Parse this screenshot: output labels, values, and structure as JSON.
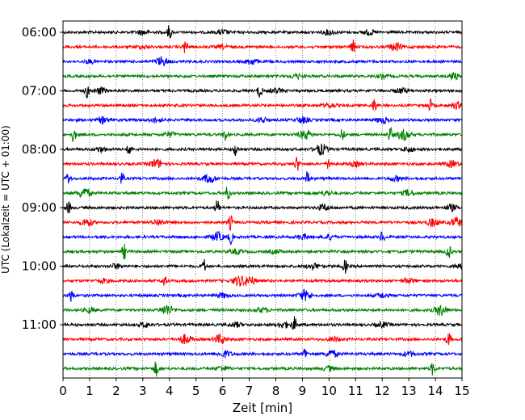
{
  "chart_data": {
    "type": "line",
    "title": "",
    "xlabel": "Zeit  [min]",
    "ylabel": "UTC (Lokalzeit = UTC + 01:00)",
    "xlim": [
      0,
      15
    ],
    "x_ticks": [
      "0",
      "1",
      "2",
      "3",
      "4",
      "5",
      "6",
      "7",
      "8",
      "9",
      "10",
      "11",
      "12",
      "13",
      "14",
      "15"
    ],
    "y_ticks": [
      "06:00",
      "07:00",
      "08:00",
      "09:00",
      "10:00",
      "11:00"
    ],
    "grid": "vertical dotted",
    "colors": [
      "#000000",
      "#ff0000",
      "#0000ff",
      "#008000"
    ],
    "traces": [
      {
        "start": "06:00",
        "color": "#000000",
        "events": [
          [
            4.0,
            1.0
          ],
          [
            3.0,
            0.3
          ],
          [
            6.0,
            0.3
          ],
          [
            10.0,
            0.3
          ],
          [
            11.5,
            0.3
          ]
        ]
      },
      {
        "start": "06:15",
        "color": "#ff0000",
        "events": [
          [
            4.6,
            1.0
          ],
          [
            10.9,
            1.0
          ],
          [
            12.5,
            0.5
          ],
          [
            6.0,
            0.2
          ],
          [
            3.0,
            0.2
          ]
        ]
      },
      {
        "start": "06:30",
        "color": "#0000ff",
        "events": [
          [
            3.7,
            0.6
          ],
          [
            7.1,
            0.4
          ],
          [
            1.0,
            0.2
          ]
        ]
      },
      {
        "start": "06:45",
        "color": "#008000",
        "events": [
          [
            8.8,
            0.3
          ],
          [
            12.0,
            0.2
          ],
          [
            14.7,
            0.4
          ]
        ]
      },
      {
        "start": "07:00",
        "color": "#000000",
        "events": [
          [
            0.9,
            0.9
          ],
          [
            1.4,
            0.4
          ],
          [
            7.4,
            1.0
          ],
          [
            8.0,
            0.3
          ],
          [
            12.7,
            0.3
          ]
        ]
      },
      {
        "start": "07:15",
        "color": "#ff0000",
        "events": [
          [
            11.7,
            0.9
          ],
          [
            13.8,
            0.8
          ],
          [
            10.0,
            0.3
          ],
          [
            14.8,
            0.4
          ]
        ]
      },
      {
        "start": "07:30",
        "color": "#0000ff",
        "events": [
          [
            1.5,
            0.4
          ],
          [
            3.5,
            0.3
          ],
          [
            7.5,
            0.3
          ],
          [
            9.0,
            0.4
          ],
          [
            12.0,
            0.4
          ]
        ]
      },
      {
        "start": "07:45",
        "color": "#008000",
        "events": [
          [
            0.4,
            1.0
          ],
          [
            6.1,
            0.8
          ],
          [
            9.1,
            0.6
          ],
          [
            10.5,
            0.8
          ],
          [
            12.3,
            1.0
          ],
          [
            12.8,
            0.7
          ],
          [
            4.0,
            0.3
          ]
        ]
      },
      {
        "start": "08:00",
        "color": "#000000",
        "events": [
          [
            2.5,
            0.9
          ],
          [
            6.5,
            0.9
          ],
          [
            9.7,
            0.7
          ],
          [
            13.0,
            0.3
          ],
          [
            1.4,
            0.3
          ]
        ]
      },
      {
        "start": "08:15",
        "color": "#ff0000",
        "events": [
          [
            3.5,
            0.6
          ],
          [
            8.8,
            1.0
          ],
          [
            10.0,
            0.8
          ],
          [
            11.0,
            0.3
          ],
          [
            14.6,
            0.4
          ]
        ]
      },
      {
        "start": "08:30",
        "color": "#0000ff",
        "events": [
          [
            0.2,
            0.8
          ],
          [
            2.2,
            0.8
          ],
          [
            5.5,
            0.6
          ],
          [
            9.2,
            1.0
          ],
          [
            12.5,
            0.3
          ]
        ]
      },
      {
        "start": "08:45",
        "color": "#008000",
        "events": [
          [
            0.8,
            0.7
          ],
          [
            6.2,
            1.0
          ],
          [
            9.9,
            0.3
          ],
          [
            13.0,
            0.4
          ]
        ]
      },
      {
        "start": "09:00",
        "color": "#000000",
        "events": [
          [
            0.2,
            0.9
          ],
          [
            5.8,
            1.0
          ],
          [
            9.8,
            0.4
          ],
          [
            14.6,
            0.4
          ]
        ]
      },
      {
        "start": "09:15",
        "color": "#ff0000",
        "events": [
          [
            0.9,
            0.5
          ],
          [
            3.6,
            0.4
          ],
          [
            6.3,
            1.0
          ],
          [
            13.9,
            0.5
          ],
          [
            14.8,
            0.6
          ]
        ]
      },
      {
        "start": "09:30",
        "color": "#0000ff",
        "events": [
          [
            5.8,
            0.6
          ],
          [
            6.3,
            0.9
          ],
          [
            9.0,
            0.3
          ],
          [
            12.0,
            0.8
          ],
          [
            10.0,
            0.3
          ]
        ]
      },
      {
        "start": "09:45",
        "color": "#008000",
        "events": [
          [
            2.3,
            1.0
          ],
          [
            14.5,
            1.0
          ],
          [
            6.5,
            0.3
          ],
          [
            8.0,
            0.2
          ]
        ]
      },
      {
        "start": "10:00",
        "color": "#000000",
        "events": [
          [
            5.3,
            0.9
          ],
          [
            10.6,
            0.9
          ],
          [
            2.0,
            0.3
          ],
          [
            9.4,
            0.4
          ],
          [
            14.9,
            0.3
          ]
        ]
      },
      {
        "start": "10:15",
        "color": "#ff0000",
        "events": [
          [
            3.8,
            0.8
          ],
          [
            6.6,
            0.6
          ],
          [
            7.0,
            0.6
          ],
          [
            1.5,
            0.3
          ],
          [
            13.0,
            0.3
          ]
        ]
      },
      {
        "start": "10:30",
        "color": "#0000ff",
        "events": [
          [
            0.3,
            0.9
          ],
          [
            9.1,
            0.7
          ],
          [
            6.0,
            0.3
          ],
          [
            12.0,
            0.3
          ]
        ]
      },
      {
        "start": "10:45",
        "color": "#008000",
        "events": [
          [
            3.9,
            0.7
          ],
          [
            14.2,
            0.7
          ],
          [
            1.0,
            0.3
          ],
          [
            7.5,
            0.3
          ]
        ]
      },
      {
        "start": "11:00",
        "color": "#000000",
        "events": [
          [
            8.7,
            1.0
          ],
          [
            8.3,
            0.4
          ],
          [
            3.1,
            0.3
          ],
          [
            6.5,
            0.3
          ],
          [
            12.0,
            0.3
          ]
        ]
      },
      {
        "start": "11:15",
        "color": "#ff0000",
        "events": [
          [
            4.6,
            0.6
          ],
          [
            5.9,
            0.6
          ],
          [
            14.5,
            1.0
          ],
          [
            10.2,
            0.3
          ]
        ]
      },
      {
        "start": "11:30",
        "color": "#0000ff",
        "events": [
          [
            6.1,
            0.4
          ],
          [
            9.1,
            0.8
          ],
          [
            10.1,
            0.5
          ],
          [
            13.0,
            0.3
          ]
        ]
      },
      {
        "start": "11:45",
        "color": "#008000",
        "events": [
          [
            3.5,
            1.0
          ],
          [
            13.9,
            0.9
          ],
          [
            6.0,
            0.3
          ],
          [
            10.0,
            0.3
          ]
        ]
      }
    ]
  }
}
